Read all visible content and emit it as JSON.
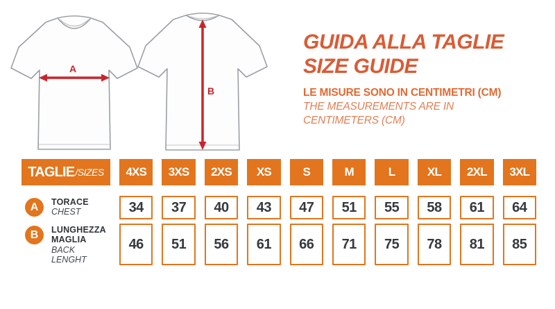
{
  "header": {
    "title_line1": "GUIDA ALLA TAGLIE",
    "title_line2": "SIZE GUIDE",
    "subtitle_bold": "LE MISURE SONO IN CENTIMETRI (CM)",
    "subtitle_italic_line1": "THE MEASUREMENTS ARE IN",
    "subtitle_italic_line2": "CENTIMETERS (CM)"
  },
  "diagrams": {
    "front_measure_label": "A",
    "back_measure_label": "B"
  },
  "table": {
    "corner_label": "TAGLIE",
    "corner_label_suffix": "/SIZES",
    "sizes": [
      "4XS",
      "3XS",
      "2XS",
      "XS",
      "S",
      "M",
      "L",
      "XL",
      "2XL",
      "3XL"
    ],
    "rows": [
      {
        "letter": "A",
        "label_lines": [
          "TORACE"
        ],
        "label_italic_lines": [
          "CHEST"
        ],
        "values": [
          "34",
          "37",
          "40",
          "43",
          "47",
          "51",
          "55",
          "58",
          "61",
          "64"
        ]
      },
      {
        "letter": "B",
        "label_lines": [
          "LUNGHEZZA",
          "MAGLIA"
        ],
        "label_italic_lines": [
          "BACK",
          "LENGHT"
        ],
        "values": [
          "46",
          "51",
          "56",
          "61",
          "66",
          "71",
          "75",
          "78",
          "81",
          "85"
        ]
      }
    ]
  },
  "colors": {
    "table_orange": "#E2751D",
    "title_orange": "#DA5B35",
    "subtitle_orange": "#E16A31",
    "subtitle_italic_orange": "#E28055",
    "arrow_red": "#C8252B",
    "value_text": "#35393D",
    "shirt_outline_gray": "#9BA0A5"
  }
}
